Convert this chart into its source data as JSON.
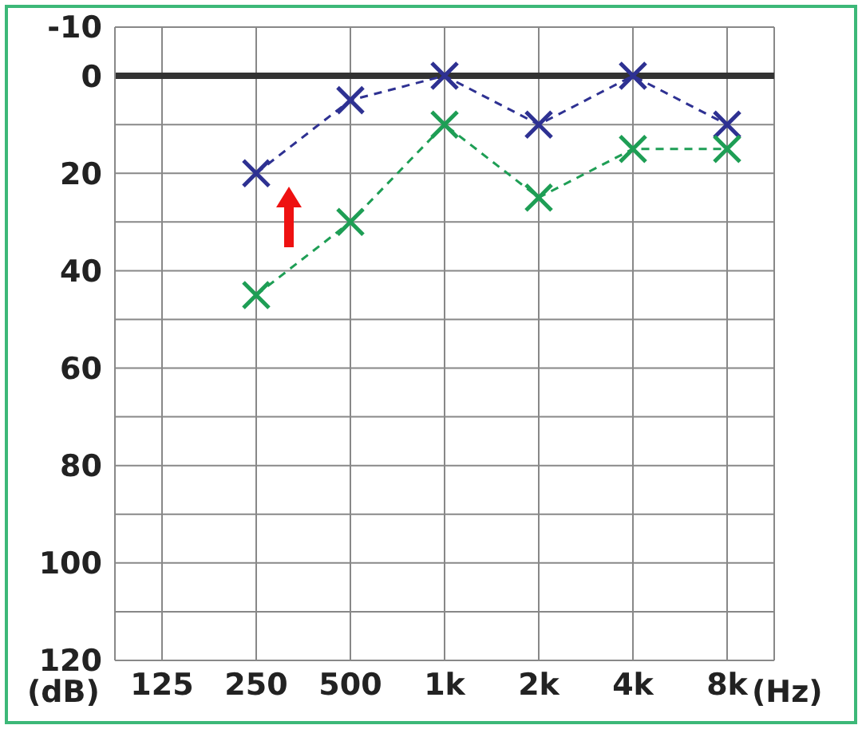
{
  "chart_data": {
    "type": "line",
    "xlabel": "(Hz)",
    "ylabel": "(dB)",
    "categories": [
      "125",
      "250",
      "500",
      "1k",
      "2k",
      "4k",
      "8k"
    ],
    "series": [
      {
        "color": "#2e3192",
        "values": [
          null,
          20,
          5,
          0,
          10,
          0,
          10
        ]
      },
      {
        "color": "#1e9e55",
        "values": [
          null,
          45,
          30,
          10,
          25,
          15,
          15
        ]
      }
    ],
    "ylim": [
      120,
      -10
    ],
    "yticks": [
      -10,
      0,
      {
        "value": 10,
        "label": null
      },
      20,
      {
        "value": 30,
        "label": null
      },
      40,
      {
        "value": 50,
        "label": null
      },
      60,
      {
        "value": 70,
        "label": null
      },
      80,
      {
        "value": 90,
        "label": null
      },
      100,
      {
        "value": 110,
        "label": null
      },
      120
    ],
    "ref_lines": [
      {
        "axis": "y",
        "value": 0,
        "color": "#333333"
      }
    ],
    "grid": true,
    "marker": "cross",
    "line_style": "dashed"
  }
}
